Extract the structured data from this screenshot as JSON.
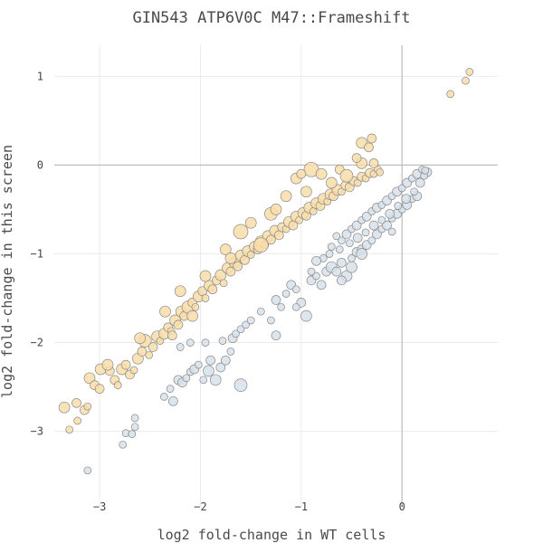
{
  "chart_data": {
    "type": "scatter",
    "title": "GIN543 ATP6V0C M47::Frameshift",
    "xlabel": "log2 fold-change in WT cells",
    "ylabel": "log2 fold-change in this screen",
    "xlim": [
      -3.45,
      0.95
    ],
    "ylim": [
      -3.85,
      1.35
    ],
    "x_ticks": [
      -3,
      -2,
      -1,
      0
    ],
    "y_ticks": [
      1,
      0,
      -1,
      -2,
      -3
    ],
    "grid": true,
    "zero_lines": true,
    "colors": {
      "above": "#f9ddaa",
      "below": "#d7e1ea",
      "marker_edge": "#8a8a8a",
      "grid": "#ebebeb",
      "zero_line": "#bdbdbd"
    },
    "series": [
      {
        "color": "#f9ddaa",
        "points": [
          [
            -3.35,
            -2.73,
            6
          ],
          [
            -3.3,
            -2.98,
            4
          ],
          [
            -3.23,
            -2.68,
            5
          ],
          [
            -3.22,
            -2.88,
            4
          ],
          [
            -3.15,
            -2.76,
            5
          ],
          [
            -3.12,
            -2.72,
            4
          ],
          [
            -3.1,
            -2.4,
            6
          ],
          [
            -3.05,
            -2.48,
            5
          ],
          [
            -3.0,
            -2.52,
            5
          ],
          [
            -2.99,
            -2.3,
            6
          ],
          [
            -2.9,
            -2.32,
            5
          ],
          [
            -2.85,
            -2.42,
            5
          ],
          [
            -2.82,
            -2.48,
            4
          ],
          [
            -2.78,
            -2.3,
            6
          ],
          [
            -2.74,
            -2.25,
            5
          ],
          [
            -2.7,
            -2.36,
            5
          ],
          [
            -2.66,
            -2.31,
            4
          ],
          [
            -2.62,
            -2.18,
            6
          ],
          [
            -2.58,
            -2.1,
            5
          ],
          [
            -2.55,
            -1.98,
            7
          ],
          [
            -2.51,
            -2.14,
            4
          ],
          [
            -2.47,
            -2.05,
            5
          ],
          [
            -2.43,
            -1.93,
            6
          ],
          [
            -2.4,
            -1.98,
            4
          ],
          [
            -2.36,
            -1.9,
            6
          ],
          [
            -2.32,
            -1.83,
            5
          ],
          [
            -2.29,
            -1.87,
            4
          ],
          [
            -2.25,
            -1.75,
            6
          ],
          [
            -2.22,
            -1.8,
            5
          ],
          [
            -2.19,
            -1.65,
            6
          ],
          [
            -2.16,
            -1.7,
            5
          ],
          [
            -2.12,
            -1.6,
            7
          ],
          [
            -2.08,
            -1.55,
            5
          ],
          [
            -2.05,
            -1.6,
            4
          ],
          [
            -2.02,
            -1.48,
            6
          ],
          [
            -1.98,
            -1.42,
            5
          ],
          [
            -1.95,
            -1.5,
            4
          ],
          [
            -1.91,
            -1.36,
            6
          ],
          [
            -1.88,
            -1.4,
            5
          ],
          [
            -1.84,
            -1.3,
            5
          ],
          [
            -1.8,
            -1.24,
            6
          ],
          [
            -1.77,
            -1.33,
            4
          ],
          [
            -1.73,
            -1.16,
            6
          ],
          [
            -1.7,
            -1.2,
            5
          ],
          [
            -1.66,
            -1.1,
            6
          ],
          [
            -1.63,
            -1.14,
            5
          ],
          [
            -1.6,
            -1.02,
            6
          ],
          [
            -1.56,
            -1.07,
            5
          ],
          [
            -1.53,
            -0.97,
            6
          ],
          [
            -1.5,
            -1.01,
            4
          ],
          [
            -1.46,
            -0.92,
            6
          ],
          [
            -1.43,
            -0.95,
            5
          ],
          [
            -1.4,
            -0.86,
            6
          ],
          [
            -1.36,
            -0.9,
            4
          ],
          [
            -1.33,
            -0.8,
            6
          ],
          [
            -1.3,
            -0.84,
            5
          ],
          [
            -1.26,
            -0.74,
            6
          ],
          [
            -1.22,
            -0.79,
            5
          ],
          [
            -1.19,
            -0.7,
            5
          ],
          [
            -1.15,
            -0.72,
            4
          ],
          [
            -1.12,
            -0.64,
            6
          ],
          [
            -1.08,
            -0.68,
            5
          ],
          [
            -1.05,
            -0.58,
            6
          ],
          [
            -1.02,
            -0.62,
            4
          ],
          [
            -0.98,
            -0.54,
            6
          ],
          [
            -0.95,
            -0.57,
            5
          ],
          [
            -0.92,
            -0.48,
            6
          ],
          [
            -0.88,
            -0.52,
            4
          ],
          [
            -0.85,
            -0.43,
            6
          ],
          [
            -0.81,
            -0.46,
            5
          ],
          [
            -0.78,
            -0.38,
            6
          ],
          [
            -0.74,
            -0.41,
            4
          ],
          [
            -0.71,
            -0.33,
            6
          ],
          [
            -0.68,
            -0.35,
            5
          ],
          [
            -0.64,
            -0.28,
            6
          ],
          [
            -0.6,
            -0.3,
            4
          ],
          [
            -0.56,
            -0.23,
            5
          ],
          [
            -0.52,
            -0.25,
            5
          ],
          [
            -0.48,
            -0.18,
            5
          ],
          [
            -0.44,
            -0.2,
            4
          ],
          [
            -0.4,
            -0.13,
            5
          ],
          [
            -0.36,
            -0.15,
            4
          ],
          [
            -0.32,
            -0.09,
            5
          ],
          [
            -0.28,
            -0.1,
            4
          ],
          [
            -0.24,
            -0.05,
            4
          ],
          [
            -0.22,
            -0.08,
            4
          ],
          [
            -0.28,
            0.02,
            5
          ],
          [
            -0.4,
            0.02,
            6
          ],
          [
            -0.45,
            0.08,
            5
          ],
          [
            -0.9,
            -0.05,
            8
          ],
          [
            -0.8,
            -0.1,
            6
          ],
          [
            -0.62,
            -0.05,
            5
          ],
          [
            -1.05,
            -0.15,
            6
          ],
          [
            -1.15,
            -0.35,
            6
          ],
          [
            -1.3,
            -0.55,
            7
          ],
          [
            -1.5,
            -0.65,
            6
          ],
          [
            -1.6,
            -0.75,
            8
          ],
          [
            -1.75,
            -0.95,
            6
          ],
          [
            -1.95,
            -1.25,
            6
          ],
          [
            -2.2,
            -1.42,
            6
          ],
          [
            -2.35,
            -1.65,
            6
          ],
          [
            -2.6,
            -1.95,
            6
          ],
          [
            -2.92,
            -2.25,
            6
          ],
          [
            -0.4,
            0.25,
            6
          ],
          [
            -0.3,
            0.3,
            5
          ],
          [
            -0.33,
            0.2,
            5
          ],
          [
            -0.95,
            -0.3,
            6
          ],
          [
            -1.4,
            -0.9,
            8
          ],
          [
            -2.08,
            -1.7,
            6
          ],
          [
            -1.0,
            -0.1,
            5
          ],
          [
            -0.7,
            -0.2,
            6
          ],
          [
            -0.55,
            -0.12,
            7
          ],
          [
            -1.25,
            -0.5,
            6
          ],
          [
            -1.7,
            -1.05,
            6
          ],
          [
            -2.28,
            -1.92,
            5
          ],
          [
            0.48,
            0.8,
            4
          ],
          [
            0.63,
            0.95,
            4
          ],
          [
            0.67,
            1.05,
            4
          ]
        ]
      },
      {
        "color": "#d7e1ea",
        "points": [
          [
            -3.12,
            -3.44,
            4
          ],
          [
            -2.77,
            -3.15,
            4
          ],
          [
            -2.74,
            -3.02,
            4
          ],
          [
            -2.68,
            -3.03,
            4
          ],
          [
            -2.65,
            -2.85,
            4
          ],
          [
            -2.65,
            -2.95,
            4
          ],
          [
            -2.36,
            -2.61,
            4
          ],
          [
            -2.3,
            -2.52,
            4
          ],
          [
            -2.27,
            -2.66,
            5
          ],
          [
            -2.22,
            -2.42,
            5
          ],
          [
            -2.18,
            -2.45,
            5
          ],
          [
            -2.14,
            -2.4,
            4
          ],
          [
            -2.1,
            -2.33,
            4
          ],
          [
            -2.06,
            -2.3,
            5
          ],
          [
            -2.02,
            -2.25,
            4
          ],
          [
            -1.97,
            -2.42,
            4
          ],
          [
            -1.92,
            -2.32,
            6
          ],
          [
            -1.9,
            -2.2,
            5
          ],
          [
            -1.85,
            -2.42,
            6
          ],
          [
            -1.8,
            -2.28,
            5
          ],
          [
            -1.75,
            -2.2,
            5
          ],
          [
            -1.7,
            -2.1,
            4
          ],
          [
            -1.6,
            -2.48,
            7
          ],
          [
            -1.95,
            -2.0,
            4
          ],
          [
            -1.78,
            -1.98,
            4
          ],
          [
            -1.68,
            -1.95,
            5
          ],
          [
            -1.65,
            -1.9,
            4
          ],
          [
            -1.6,
            -1.85,
            4
          ],
          [
            -1.55,
            -1.8,
            4
          ],
          [
            -2.2,
            -2.05,
            4
          ],
          [
            -2.1,
            -2.0,
            4
          ],
          [
            -1.5,
            -1.75,
            4
          ],
          [
            -1.4,
            -1.65,
            4
          ],
          [
            -1.25,
            -1.92,
            5
          ],
          [
            -1.25,
            -1.52,
            5
          ],
          [
            -1.2,
            -1.6,
            4
          ],
          [
            -1.15,
            -1.45,
            4
          ],
          [
            -1.1,
            -1.35,
            5
          ],
          [
            -1.05,
            -1.4,
            4
          ],
          [
            -1.0,
            -1.55,
            5
          ],
          [
            -0.95,
            -1.7,
            6
          ],
          [
            -0.9,
            -1.3,
            5
          ],
          [
            -0.85,
            -1.25,
            4
          ],
          [
            -0.8,
            -1.35,
            5
          ],
          [
            -0.75,
            -1.2,
            5
          ],
          [
            -0.7,
            -1.15,
            6
          ],
          [
            -0.65,
            -1.2,
            5
          ],
          [
            -0.6,
            -1.1,
            5
          ],
          [
            -0.55,
            -1.25,
            6
          ],
          [
            -0.5,
            -1.05,
            4
          ],
          [
            -0.45,
            -0.98,
            5
          ],
          [
            -0.4,
            -0.95,
            5
          ],
          [
            -0.35,
            -0.9,
            5
          ],
          [
            -0.3,
            -0.85,
            4
          ],
          [
            -0.25,
            -0.78,
            5
          ],
          [
            -0.2,
            -0.72,
            4
          ],
          [
            -0.15,
            -0.68,
            5
          ],
          [
            -0.1,
            -0.6,
            4
          ],
          [
            -0.05,
            -0.55,
            5
          ],
          [
            0.0,
            -0.5,
            4
          ],
          [
            0.05,
            -0.45,
            5
          ],
          [
            0.1,
            -0.38,
            4
          ],
          [
            0.15,
            -0.35,
            5
          ],
          [
            -0.6,
            -0.85,
            4
          ],
          [
            -0.55,
            -0.78,
            5
          ],
          [
            -0.5,
            -0.72,
            4
          ],
          [
            -0.45,
            -0.68,
            5
          ],
          [
            -0.4,
            -0.62,
            4
          ],
          [
            -0.35,
            -0.58,
            5
          ],
          [
            -0.3,
            -0.52,
            4
          ],
          [
            -0.25,
            -0.48,
            5
          ],
          [
            -0.2,
            -0.45,
            4
          ],
          [
            -0.15,
            -0.4,
            5
          ],
          [
            -0.1,
            -0.35,
            4
          ],
          [
            -0.05,
            -0.3,
            5
          ],
          [
            0.0,
            -0.26,
            4
          ],
          [
            0.05,
            -0.2,
            5
          ],
          [
            0.1,
            -0.15,
            4
          ],
          [
            0.15,
            -0.1,
            5
          ],
          [
            0.2,
            -0.05,
            4
          ],
          [
            0.25,
            -0.08,
            5
          ],
          [
            -0.62,
            -0.95,
            4
          ],
          [
            -0.7,
            -0.92,
            4
          ],
          [
            -0.78,
            -1.05,
            4
          ],
          [
            -0.85,
            -1.08,
            5
          ],
          [
            -0.72,
            -1.0,
            4
          ],
          [
            -0.52,
            -0.88,
            4
          ],
          [
            -0.44,
            -0.82,
            5
          ],
          [
            -0.36,
            -0.76,
            4
          ],
          [
            -0.28,
            -0.68,
            5
          ],
          [
            -0.2,
            -0.62,
            4
          ],
          [
            -0.12,
            -0.55,
            5
          ],
          [
            -0.04,
            -0.46,
            4
          ],
          [
            0.04,
            -0.38,
            5
          ],
          [
            0.12,
            -0.3,
            4
          ],
          [
            0.18,
            -0.2,
            5
          ],
          [
            0.22,
            -0.12,
            4
          ],
          [
            0.23,
            -0.06,
            4
          ],
          [
            -0.65,
            -0.8,
            4
          ],
          [
            -0.6,
            -1.3,
            5
          ],
          [
            -0.4,
            -1.0,
            6
          ],
          [
            -0.9,
            -1.2,
            4
          ],
          [
            -1.05,
            -1.6,
            4
          ],
          [
            -1.3,
            -1.75,
            4
          ],
          [
            -0.5,
            -1.15,
            6
          ],
          [
            -0.1,
            -0.75,
            4
          ]
        ]
      }
    ]
  }
}
